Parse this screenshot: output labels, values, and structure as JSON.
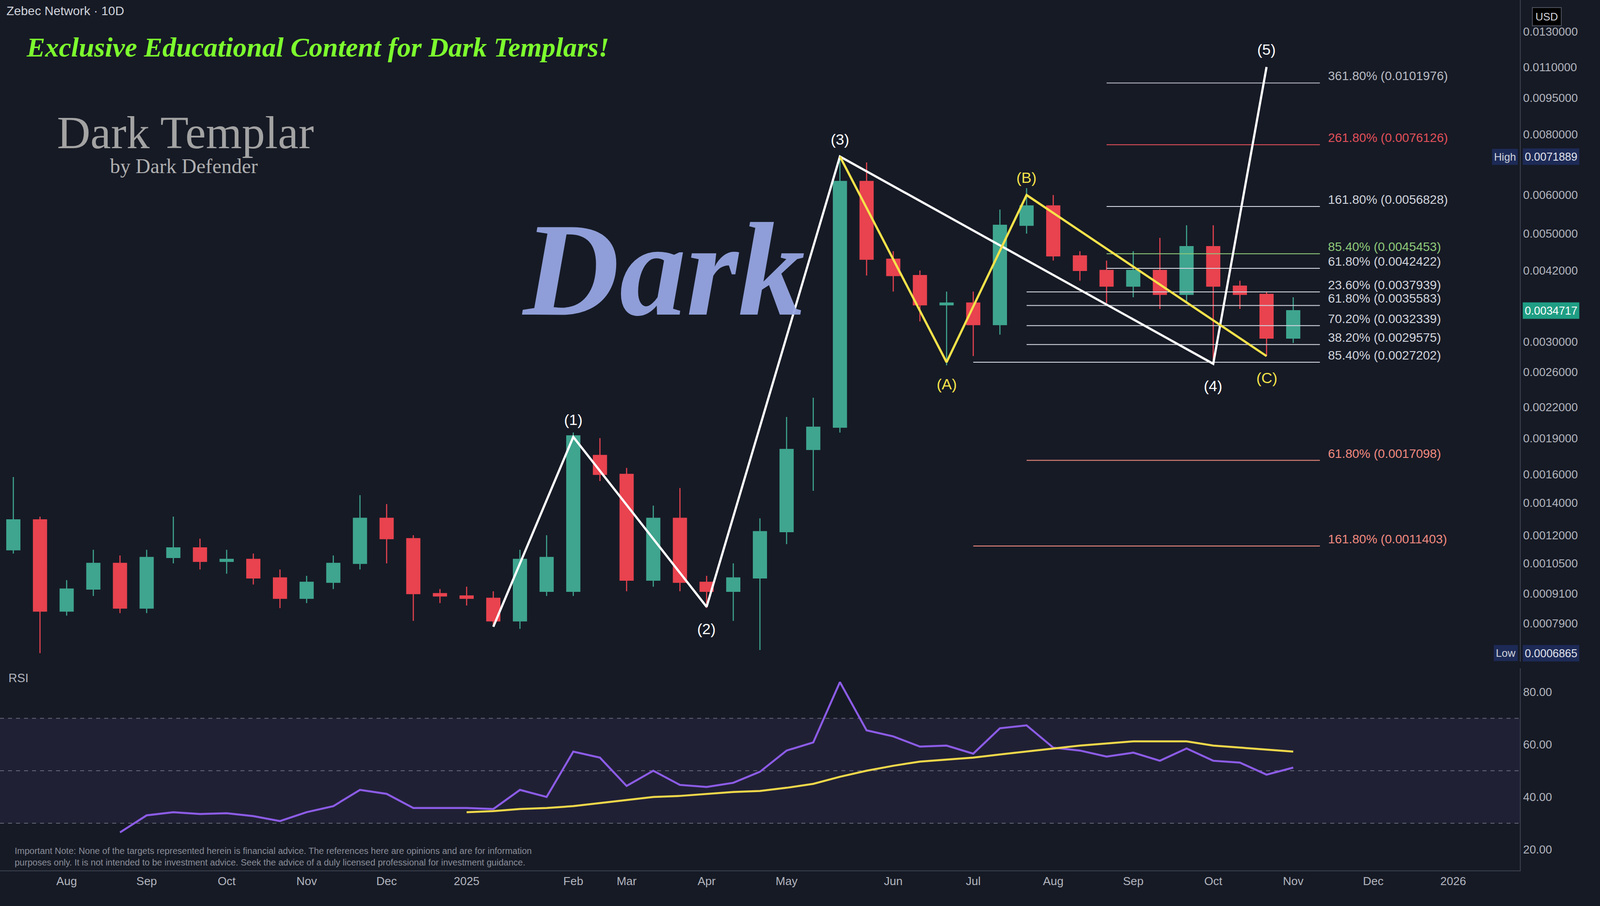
{
  "chart_data": {
    "type": "candlestick",
    "title": "Zebec Network · 10D",
    "log": "y",
    "grid": false,
    "categories": [
      null,
      null,
      "Aug",
      null,
      null,
      "Sep",
      null,
      null,
      "Oct",
      null,
      null,
      "Nov",
      null,
      null,
      "Dec",
      null,
      null,
      "2025",
      null,
      null,
      null,
      "Feb",
      null,
      "Mar",
      null,
      null,
      "Apr",
      null,
      null,
      "May",
      null,
      null,
      null,
      "Jun",
      null,
      null,
      "Jul",
      null,
      null,
      "Aug",
      null,
      null,
      "Sep",
      null,
      null,
      "Oct",
      null,
      null,
      "Nov",
      null,
      null,
      "Dec",
      null,
      null,
      "2026",
      null,
      null
    ],
    "candles": {
      "open": [
        0.00112,
        0.00129,
        0.000838,
        0.00093,
        0.00105,
        0.00085,
        0.00108,
        0.00113,
        0.00106,
        0.00107,
        0.00098,
        0.00089,
        0.00096,
        0.00105,
        0.0013,
        0.00118,
        0.00091,
        0.0009,
        0.00089,
        0.0008,
        0.00092,
        0.00092,
        0.00175,
        0.0016,
        0.00097,
        0.0013,
        0.00096,
        0.00092,
        0.00098,
        0.00122,
        0.0018,
        0.002,
        0.0064,
        0.00443,
        0.0041,
        0.00357,
        0.0036,
        0.00325,
        0.0052,
        0.0057,
        0.0045,
        0.0042,
        0.0039,
        0.0042,
        0.00375,
        0.0047,
        0.0039,
        0.00375,
        0.00305,
        null,
        null,
        null,
        null,
        null,
        null,
        null,
        null
      ],
      "high": [
        0.00158,
        0.00131,
        0.00097,
        0.00112,
        0.00109,
        0.00112,
        0.00131,
        0.00118,
        0.00112,
        0.0011,
        0.00102,
        0.00099,
        0.00109,
        0.00145,
        0.00139,
        0.0012,
        0.00093,
        0.00094,
        0.00092,
        0.00112,
        0.0012,
        0.00195,
        0.0019,
        0.00165,
        0.00138,
        0.0015,
        0.00099,
        0.00105,
        0.0013,
        0.0021,
        0.0023,
        0.0071889,
        0.007,
        0.0046,
        0.0042,
        0.0038,
        0.0038,
        0.0056,
        0.0062,
        0.006,
        0.0046,
        0.0044,
        0.0046,
        0.0049,
        0.0052,
        0.0052,
        0.004,
        0.0038,
        0.0037,
        null,
        null,
        null,
        null,
        null,
        null,
        null,
        null
      ],
      "low": [
        0.0011,
        0.0006865,
        0.00082,
        0.0009,
        0.00083,
        0.00083,
        0.00105,
        0.00102,
        0.001,
        0.00095,
        0.00085,
        0.00087,
        0.00093,
        0.00102,
        0.00105,
        0.0008,
        0.00087,
        0.00086,
        0.00078,
        0.00077,
        0.0009,
        0.0009,
        0.00155,
        0.00092,
        0.00094,
        0.00092,
        0.00085,
        0.0008,
        0.000697,
        0.00115,
        0.00148,
        0.00195,
        0.0041,
        0.0038,
        0.0033,
        0.00268,
        0.0028,
        0.0031,
        0.005,
        0.0044,
        0.004,
        0.0036,
        0.0037,
        0.0035,
        0.0036,
        0.00275,
        0.0035,
        0.0028,
        0.00298,
        null,
        null,
        null,
        null,
        null,
        null,
        null,
        null
      ],
      "close": [
        0.00129,
        0.000838,
        0.00093,
        0.00105,
        0.00085,
        0.00108,
        0.00113,
        0.00106,
        0.00107,
        0.00098,
        0.00089,
        0.00096,
        0.00105,
        0.0013,
        0.00118,
        0.00091,
        0.0009,
        0.00089,
        0.0008,
        0.00107,
        0.00108,
        0.00192,
        0.0016,
        0.00097,
        0.0013,
        0.00096,
        0.00092,
        0.00098,
        0.00122,
        0.0018,
        0.002,
        0.0064,
        0.00443,
        0.0041,
        0.00357,
        0.0036,
        0.00325,
        0.0052,
        0.0057,
        0.0045,
        0.0042,
        0.0039,
        0.0042,
        0.00375,
        0.0047,
        0.0039,
        0.00375,
        0.00305,
        0.0034717,
        null,
        null,
        null,
        null,
        null,
        null,
        null,
        null
      ],
      "colors": [
        "#3fa58f",
        "#e8434f",
        "#3fa58f",
        "#3fa58f",
        "#e8434f",
        "#3fa58f",
        "#3fa58f",
        "#e8434f",
        "#3fa58f",
        "#e8434f",
        "#e8434f",
        "#3fa58f",
        "#3fa58f",
        "#3fa58f",
        "#e8434f",
        "#e8434f",
        "#e8434f",
        "#e8434f",
        "#e8434f",
        "#3fa58f",
        "#3fa58f",
        "#3fa58f",
        "#e8434f",
        "#e8434f",
        "#3fa58f",
        "#e8434f",
        "#e8434f",
        "#3fa58f",
        "#3fa58f",
        "#3fa58f",
        "#3fa58f",
        "#3fa58f",
        "#e8434f",
        "#e8434f",
        "#e8434f",
        "#3fa58f",
        "#e8434f",
        "#3fa58f",
        "#3fa58f",
        "#e8434f",
        "#e8434f",
        "#e8434f",
        "#3fa58f",
        "#e8434f",
        "#3fa58f",
        "#e8434f",
        "#e8434f",
        "#e8434f",
        "#3fa58f",
        null,
        null,
        null,
        null,
        null,
        null,
        null,
        null
      ]
    },
    "series": [
      {
        "type": "line",
        "color": "#ffffff",
        "x": [
          18,
          21,
          26,
          31,
          45,
          47
        ],
        "values": [
          0.000778,
          0.00191,
          0.000855,
          0.0072,
          0.0027,
          0.011
        ],
        "labels": [
          null,
          "(1)",
          "(2)",
          "(3)",
          "(4)",
          "(5)"
        ]
      },
      {
        "type": "line",
        "color": "#f5e24a",
        "x": [
          31,
          35,
          38,
          47
        ],
        "values": [
          0.0072,
          0.00272,
          0.006,
          0.0028
        ],
        "labels": [
          null,
          "(A)",
          "(B)",
          "(C)"
        ]
      }
    ],
    "levels": [
      {
        "label": "361.80% (0.0101976)",
        "value": 0.0101976,
        "x": [
          41,
          49
        ],
        "color": "#b9bcc4"
      },
      {
        "label": "261.80% (0.0076126)",
        "value": 0.0076126,
        "x": [
          41,
          49
        ],
        "color": "#e0505a"
      },
      {
        "label": "161.80% (0.0056828)",
        "value": 0.0056828,
        "x": [
          41,
          49
        ],
        "color": "#d1d4dc"
      },
      {
        "label": "85.40% (0.0045453)",
        "value": 0.0045453,
        "x": [
          41,
          49
        ],
        "color": "#8fc97a"
      },
      {
        "label": "61.80% (0.0042422)",
        "value": 0.0042422,
        "x": [
          41,
          49
        ],
        "color": "#d1d4dc"
      },
      {
        "label": "23.60% (0.0037939)",
        "value": 0.0037939,
        "x": [
          38,
          49
        ],
        "color": "#d1d4dc"
      },
      {
        "label": "61.80% (0.0035583)",
        "value": 0.0035583,
        "x": [
          38,
          49
        ],
        "color": "#d1d4dc"
      },
      {
        "label": "70.20% (0.0032339)",
        "value": 0.0032339,
        "x": [
          38,
          49
        ],
        "color": "#d1d4dc"
      },
      {
        "label": "38.20% (0.0029575)",
        "value": 0.0029575,
        "x": [
          38,
          49
        ],
        "color": "#d1d4dc"
      },
      {
        "label": "85.40% (0.0027202)",
        "value": 0.0027202,
        "x": [
          36,
          49
        ],
        "color": "#d1d4dc"
      },
      {
        "label": "61.80% (0.0017098)",
        "value": 0.0017098,
        "x": [
          38,
          49
        ],
        "color": "#f08a80"
      },
      {
        "label": "161.80% (0.0011403)",
        "value": 0.0011403,
        "x": [
          36,
          49
        ],
        "color": "#f08a80"
      }
    ],
    "ylim": [
      0.00066,
      0.0151
    ],
    "yticks": [
      {
        "value": 0.013,
        "label": "0.0130000"
      },
      {
        "value": 0.011,
        "label": "0.0110000"
      },
      {
        "value": 0.0095,
        "label": "0.0095000"
      },
      {
        "value": 0.008,
        "label": "0.0080000"
      },
      {
        "value": 0.006,
        "label": "0.0060000"
      },
      {
        "value": 0.005,
        "label": "0.0050000"
      },
      {
        "value": 0.0042,
        "label": "0.0042000"
      },
      {
        "value": 0.003,
        "label": "0.0030000"
      },
      {
        "value": 0.0026,
        "label": "0.0026000"
      },
      {
        "value": 0.0022,
        "label": "0.0022000"
      },
      {
        "value": 0.0019,
        "label": "0.0019000"
      },
      {
        "value": 0.0016,
        "label": "0.0016000"
      },
      {
        "value": 0.0014,
        "label": "0.0014000"
      },
      {
        "value": 0.0012,
        "label": "0.0012000"
      },
      {
        "value": 0.00105,
        "label": "0.0010500"
      },
      {
        "value": 0.00091,
        "label": "0.0009100"
      },
      {
        "value": 0.00079,
        "label": "0.0007900"
      }
    ],
    "price_labels": [
      {
        "label": "High",
        "value": 0.0071889
      },
      {
        "label": "Low",
        "value": 0.0006865
      }
    ],
    "last_price": 0.0034717,
    "currency": "USD",
    "watermark": {
      "header": "Exclusive Educational Content for Dark Templars!",
      "brand": "Dark Templar",
      "byline": "by Dark Defender",
      "overlay": "Dark"
    },
    "disclaimer": [
      "Important Note: None of the targets represented herein is financial advice. The references here are opinions and are for information",
      "purposes only. It is not intended to be investment advice. Seek the advice of a duly licensed professional for investment guidance."
    ],
    "rsi": {
      "type": "line",
      "title": "RSI",
      "grid": false,
      "ylim": [
        12,
        89
      ],
      "yticks": [
        {
          "value": 20,
          "label": "20.00"
        },
        {
          "value": 40,
          "label": "40.00"
        },
        {
          "value": 60,
          "label": "60.00"
        },
        {
          "value": 80,
          "label": "80.00"
        }
      ],
      "levels": [
        30,
        50,
        70
      ],
      "series": [
        {
          "color": "#8c5ce6",
          "values": [
            null,
            null,
            null,
            null,
            26.5,
            33,
            34.2,
            33.5,
            33.8,
            32.7,
            30.8,
            34.2,
            36.5,
            42.7,
            41.2,
            35.8,
            35.8,
            35.8,
            35.4,
            42.7,
            40,
            57.3,
            55,
            44.2,
            50,
            44.6,
            43.8,
            45.4,
            49.6,
            57.7,
            60.8,
            83.8,
            65.4,
            63.1,
            59.2,
            59.6,
            56.5,
            66.2,
            67.3,
            58.8,
            57.7,
            55.4,
            56.9,
            53.8,
            58.5,
            53.8,
            53.1,
            48.5,
            51.2,
            null,
            null,
            null,
            null,
            null,
            null,
            null,
            null
          ]
        },
        {
          "color": "#f0d84a",
          "values": [
            null,
            null,
            null,
            null,
            null,
            null,
            null,
            null,
            null,
            null,
            null,
            null,
            null,
            null,
            null,
            null,
            null,
            34.2,
            34.6,
            35.4,
            35.8,
            36.5,
            37.7,
            38.8,
            40,
            40.4,
            41.2,
            41.9,
            42.3,
            43.5,
            45,
            47.7,
            50,
            51.9,
            53.5,
            54.2,
            55,
            56.2,
            57.3,
            58.5,
            59.6,
            60.4,
            61.2,
            61.2,
            61.2,
            59.6,
            58.8,
            58.1,
            57.3,
            null,
            null,
            null,
            null,
            null,
            null,
            null,
            null
          ]
        }
      ]
    }
  }
}
